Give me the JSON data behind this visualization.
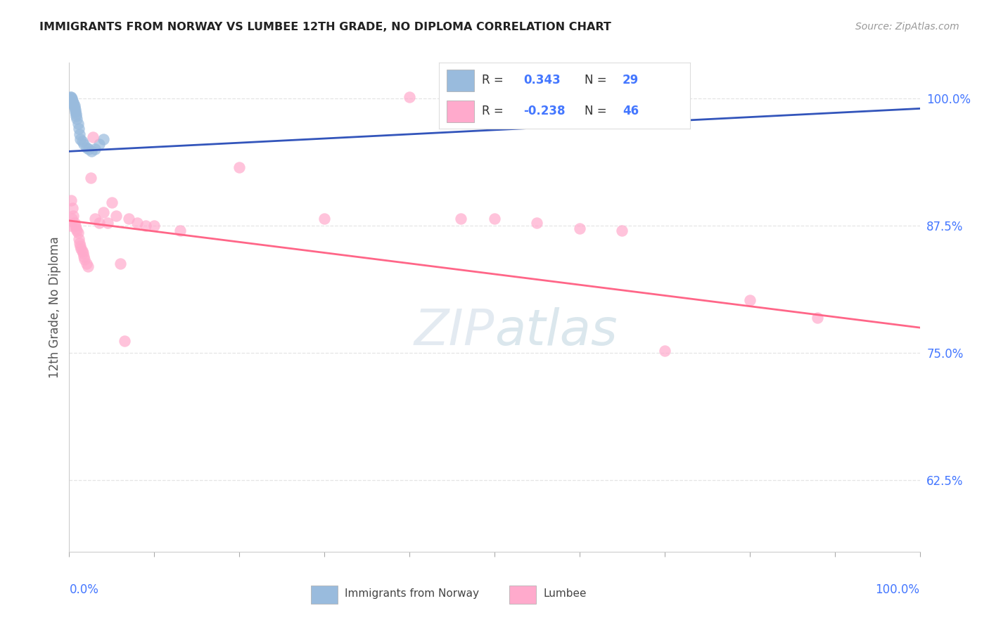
{
  "title": "IMMIGRANTS FROM NORWAY VS LUMBEE 12TH GRADE, NO DIPLOMA CORRELATION CHART",
  "source": "Source: ZipAtlas.com",
  "ylabel": "12th Grade, No Diploma",
  "ytick_labels": [
    "100.0%",
    "87.5%",
    "75.0%",
    "62.5%"
  ],
  "ytick_values": [
    1.0,
    0.875,
    0.75,
    0.625
  ],
  "xtick_left": "0.0%",
  "xtick_right": "100.0%",
  "xlim": [
    0.0,
    1.0
  ],
  "ylim": [
    0.555,
    1.035
  ],
  "legend_r_norway": "0.343",
  "legend_n_norway": "29",
  "legend_r_lumbee": "-0.238",
  "legend_n_lumbee": "46",
  "color_norway_fill": "#99BBDD",
  "color_lumbee_fill": "#FFAACC",
  "color_trend_norway": "#3355BB",
  "color_trend_lumbee": "#FF6688",
  "color_blue_label": "#4477FF",
  "color_grid": "#E5E5E5",
  "color_title": "#222222",
  "color_source": "#999999",
  "watermark_color": "#BBDDEE",
  "watermark_alpha": 0.35,
  "norway_x": [
    0.001,
    0.002,
    0.002,
    0.003,
    0.003,
    0.003,
    0.004,
    0.005,
    0.005,
    0.005,
    0.006,
    0.006,
    0.007,
    0.007,
    0.008,
    0.008,
    0.009,
    0.01,
    0.011,
    0.012,
    0.013,
    0.015,
    0.017,
    0.02,
    0.023,
    0.026,
    0.03,
    0.035,
    0.04
  ],
  "norway_y": [
    1.001,
    1.001,
    1.0,
    1.0,
    0.999,
    0.998,
    0.997,
    0.996,
    0.995,
    0.994,
    0.993,
    0.991,
    0.989,
    0.987,
    0.985,
    0.983,
    0.98,
    0.975,
    0.97,
    0.965,
    0.96,
    0.958,
    0.955,
    0.952,
    0.95,
    0.948,
    0.95,
    0.955,
    0.96
  ],
  "norway_trend_x0": 0.0,
  "norway_trend_y0": 0.948,
  "norway_trend_x1": 1.0,
  "norway_trend_y1": 0.99,
  "lumbee_x": [
    0.001,
    0.002,
    0.003,
    0.004,
    0.005,
    0.006,
    0.007,
    0.008,
    0.009,
    0.01,
    0.011,
    0.012,
    0.013,
    0.014,
    0.015,
    0.016,
    0.017,
    0.018,
    0.02,
    0.022,
    0.025,
    0.028,
    0.03,
    0.035,
    0.04,
    0.045,
    0.05,
    0.055,
    0.06,
    0.065,
    0.07,
    0.08,
    0.09,
    0.1,
    0.13,
    0.2,
    0.3,
    0.4,
    0.46,
    0.5,
    0.55,
    0.6,
    0.65,
    0.7,
    0.8,
    0.88
  ],
  "lumbee_y": [
    0.875,
    0.9,
    0.882,
    0.892,
    0.885,
    0.878,
    0.875,
    0.872,
    0.87,
    0.868,
    0.862,
    0.858,
    0.855,
    0.852,
    0.85,
    0.848,
    0.845,
    0.842,
    0.838,
    0.835,
    0.922,
    0.962,
    0.882,
    0.878,
    0.888,
    0.878,
    0.898,
    0.885,
    0.838,
    0.762,
    0.882,
    0.878,
    0.875,
    0.875,
    0.87,
    0.932,
    0.882,
    1.001,
    0.882,
    0.882,
    0.878,
    0.872,
    0.87,
    0.752,
    0.802,
    0.785
  ],
  "lumbee_trend_x0": 0.0,
  "lumbee_trend_y0": 0.88,
  "lumbee_trend_x1": 1.0,
  "lumbee_trend_y1": 0.775,
  "legend_norway_label": "Immigrants from Norway",
  "legend_lumbee_label": "Lumbee"
}
